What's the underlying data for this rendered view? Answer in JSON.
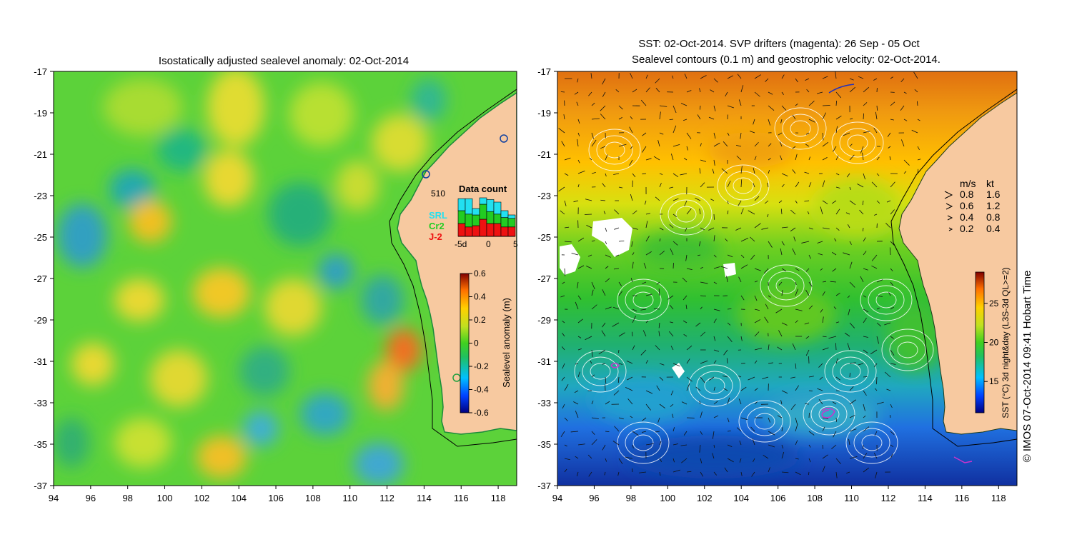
{
  "left_panel": {
    "title": "Isostatically adjusted sealevel anomaly: 02-Oct-2014",
    "x_ticks": [
      "94",
      "96",
      "98",
      "100",
      "102",
      "104",
      "106",
      "108",
      "110",
      "112",
      "114",
      "116",
      "118"
    ],
    "y_ticks": [
      "-17",
      "-19",
      "-21",
      "-23",
      "-25",
      "-27",
      "-29",
      "-31",
      "-33",
      "-35",
      "-37"
    ],
    "colorbar": {
      "label": "Sealevel anomaly (m)",
      "ticks": [
        "0.6",
        "0.4",
        "0.2",
        "0",
        "-0.2",
        "-0.4",
        "-0.6"
      ],
      "range": [
        -0.6,
        0.6
      ]
    },
    "data_count": {
      "title": "Data count",
      "max_label": "510",
      "legend": [
        {
          "name": "SRL",
          "color": "#22e0f0"
        },
        {
          "name": "Cr2",
          "color": "#22cc22"
        },
        {
          "name": "J-2",
          "color": "#ee1111"
        }
      ],
      "x_labels": [
        "-5d",
        "0",
        "5"
      ],
      "bars": [
        {
          "j2": 0.3,
          "cr2": 0.3,
          "srl": 0.28
        },
        {
          "j2": 0.22,
          "cr2": 0.3,
          "srl": 0.36
        },
        {
          "j2": 0.25,
          "cr2": 0.25,
          "srl": 0.15
        },
        {
          "j2": 0.4,
          "cr2": 0.35,
          "srl": 0.15
        },
        {
          "j2": 0.3,
          "cr2": 0.28,
          "srl": 0.28
        },
        {
          "j2": 0.3,
          "cr2": 0.22,
          "srl": 0.28
        },
        {
          "j2": 0.22,
          "cr2": 0.22,
          "srl": 0.16
        },
        {
          "j2": 0.22,
          "cr2": 0.2,
          "srl": 0.08
        }
      ]
    }
  },
  "right_panel": {
    "title_line1": "SST: 02-Oct-2014. SVP drifters (magenta): 26 Sep - 05 Oct",
    "title_line2": "Sealevel contours (0.1 m) and geostrophic velocity: 02-Oct-2014.",
    "x_ticks": [
      "94",
      "96",
      "98",
      "100",
      "102",
      "104",
      "106",
      "108",
      "110",
      "112",
      "114",
      "116",
      "118"
    ],
    "y_ticks": [
      "-17",
      "-19",
      "-21",
      "-23",
      "-25",
      "-27",
      "-29",
      "-31",
      "-33",
      "-35",
      "-37"
    ],
    "colorbar": {
      "label": "SST (°C) 3d night&day (L3S-3d QL>=2)",
      "ticks": [
        "25",
        "20",
        "15"
      ],
      "range": [
        11,
        29
      ]
    },
    "velocity_legend": {
      "header_ms": "m/s",
      "header_kt": "kt",
      "rows": [
        {
          "ms": "0.8",
          "kt": "1.6"
        },
        {
          "ms": "0.6",
          "kt": "1.2"
        },
        {
          "ms": "0.4",
          "kt": "0.8"
        },
        {
          "ms": "0.2",
          "kt": "0.4"
        }
      ]
    }
  },
  "credit": "© IMOS 07-Oct-2014 09:41 Hobart Time",
  "colors": {
    "land": "#f7c9a0",
    "axis": "#000000",
    "contour": "#ffffff",
    "drifter": "#cc33cc",
    "vector": "#111111"
  }
}
